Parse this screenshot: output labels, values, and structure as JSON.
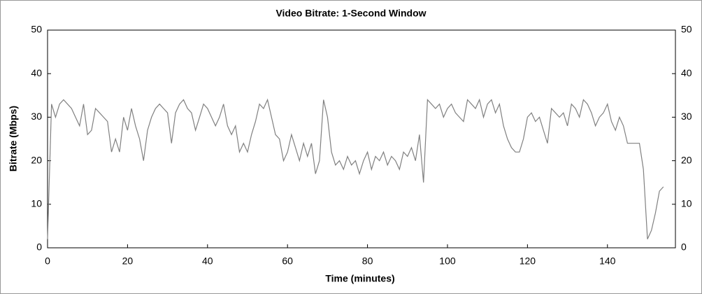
{
  "chart_data": {
    "type": "line",
    "title": "Video Bitrate: 1-Second Window",
    "x_label": "Time (minutes)",
    "y_label": "Bitrate (Mbps)",
    "color": "#808080",
    "x": [
      0,
      1,
      2,
      3,
      4,
      5,
      6,
      7,
      8,
      9,
      10,
      11,
      12,
      13,
      14,
      15,
      16,
      17,
      18,
      19,
      20,
      21,
      22,
      23,
      24,
      25,
      26,
      27,
      28,
      29,
      30,
      31,
      32,
      33,
      34,
      35,
      36,
      37,
      38,
      39,
      40,
      41,
      42,
      43,
      44,
      45,
      46,
      47,
      48,
      49,
      50,
      51,
      52,
      53,
      54,
      55,
      56,
      57,
      58,
      59,
      60,
      61,
      62,
      63,
      64,
      65,
      66,
      67,
      68,
      69,
      70,
      71,
      72,
      73,
      74,
      75,
      76,
      77,
      78,
      79,
      80,
      81,
      82,
      83,
      84,
      85,
      86,
      87,
      88,
      89,
      90,
      91,
      92,
      93,
      94,
      95,
      96,
      97,
      98,
      99,
      100,
      101,
      102,
      103,
      104,
      105,
      106,
      107,
      108,
      109,
      110,
      111,
      112,
      113,
      114,
      115,
      116,
      117,
      118,
      119,
      120,
      121,
      122,
      123,
      124,
      125,
      126,
      127,
      128,
      129,
      130,
      131,
      132,
      133,
      134,
      135,
      136,
      137,
      138,
      139,
      140,
      141,
      142,
      143,
      144,
      145,
      146,
      147,
      148,
      149,
      150,
      151,
      152,
      153,
      154
    ],
    "values": [
      2,
      33,
      30,
      33,
      34,
      33,
      32,
      30,
      28,
      33,
      26,
      27,
      32,
      31,
      30,
      29,
      22,
      25,
      22,
      30,
      27,
      32,
      28,
      25,
      20,
      27,
      30,
      32,
      33,
      32,
      31,
      24,
      31,
      33,
      34,
      32,
      31,
      27,
      30,
      33,
      32,
      30,
      28,
      30,
      33,
      28,
      26,
      28,
      22,
      24,
      22,
      26,
      29,
      33,
      32,
      34,
      30,
      26,
      25,
      20,
      22,
      26,
      23,
      20,
      24,
      21,
      24,
      17,
      20,
      34,
      30,
      22,
      19,
      20,
      18,
      21,
      19,
      20,
      17,
      20,
      22,
      18,
      21,
      20,
      22,
      19,
      21,
      20,
      18,
      22,
      21,
      23,
      20,
      26,
      15,
      34,
      33,
      32,
      33,
      30,
      32,
      33,
      31,
      30,
      29,
      34,
      33,
      32,
      34,
      30,
      33,
      34,
      31,
      33,
      28,
      25,
      23,
      22,
      22,
      25,
      30,
      31,
      29,
      30,
      27,
      24,
      32,
      31,
      30,
      31,
      28,
      33,
      32,
      30,
      34,
      33,
      31,
      28,
      30,
      31,
      33,
      29,
      27,
      30,
      28,
      24,
      24,
      24,
      24,
      18,
      2,
      4,
      8,
      13,
      14
    ],
    "xlim": [
      0,
      157
    ],
    "xticks": [
      0,
      20,
      40,
      60,
      80,
      100,
      120,
      140
    ],
    "ylim": [
      0,
      50
    ],
    "yticks": [
      0,
      10,
      20,
      30,
      40,
      50
    ],
    "y2lim": [
      0,
      50
    ],
    "y2ticks": [
      0,
      10,
      20,
      30,
      40,
      50
    ]
  }
}
